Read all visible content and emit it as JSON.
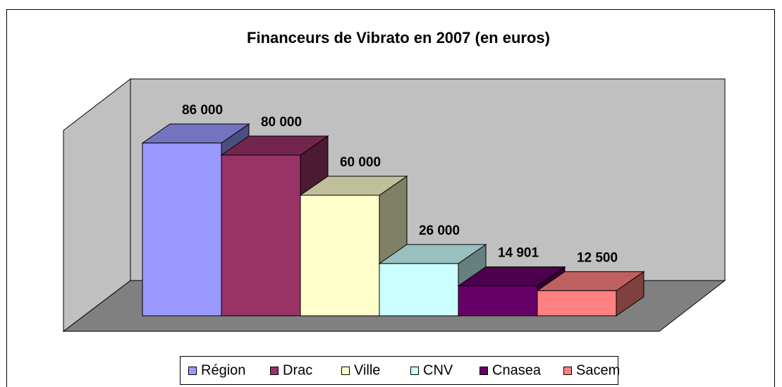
{
  "chart_data": {
    "type": "bar",
    "title": "Financeurs de Vibrato en 2007 (en euros)",
    "ylim": [
      0,
      100000
    ],
    "series": [
      {
        "name": "Région",
        "color": "#9999ff",
        "values": [
          86000
        ],
        "value_labels": [
          "86 000"
        ]
      },
      {
        "name": "Drac",
        "color": "#993366",
        "values": [
          80000
        ],
        "value_labels": [
          "80 000"
        ]
      },
      {
        "name": "Ville",
        "color": "#ffffcc",
        "values": [
          60000
        ],
        "value_labels": [
          "60 000"
        ]
      },
      {
        "name": "CNV",
        "color": "#ccffff",
        "values": [
          26000
        ],
        "value_labels": [
          "26 000"
        ]
      },
      {
        "name": "Cnasea",
        "color": "#660066",
        "values": [
          14901
        ],
        "value_labels": [
          "14 901"
        ]
      },
      {
        "name": "Sacem",
        "color": "#ff8080",
        "values": [
          12500
        ],
        "value_labels": [
          "12 500"
        ]
      }
    ],
    "legend": "bottom"
  }
}
